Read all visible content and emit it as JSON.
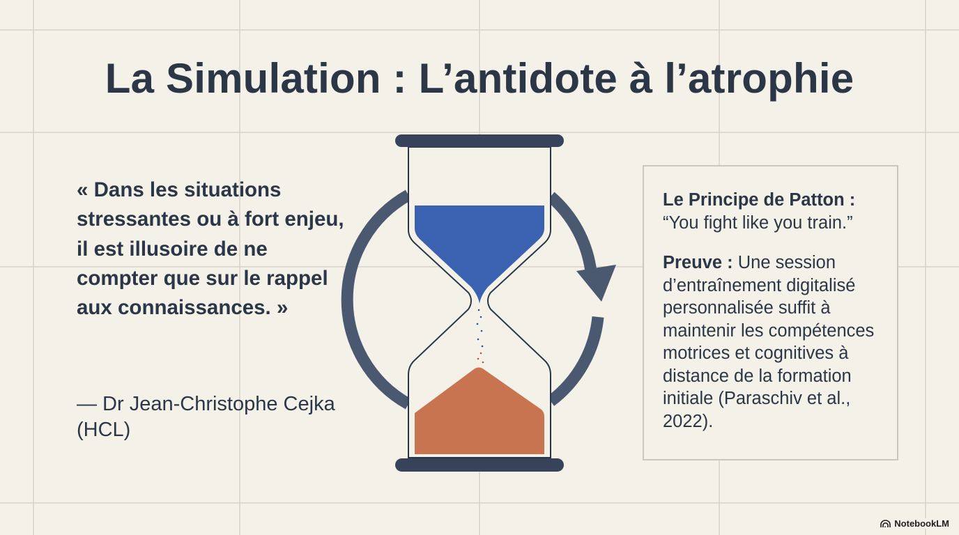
{
  "title": "La Simulation : L’antidote à l’atrophie",
  "quote": {
    "text": "« Dans les situations stressantes ou à fort enjeu, il est illusoire de ne compter que sur le rappel aux connaissances. »",
    "author": "— Dr Jean-Christophe Cejka (HCL)"
  },
  "box": {
    "principle_label": "Le Principe de Patton :",
    "principle_text": "“You fight like you train.”",
    "proof_label": "Preuve :",
    "proof_text": " Une session d’entraînement digitalisé personnalisée suffit à maintenir les compétences motrices et cognitives à distance de la formation initiale (Paraschiv et al., 2022)."
  },
  "illustration": {
    "icon": "hourglass-cycle-icon",
    "colors": {
      "frame": "#36435a",
      "top_sand": "#3a62b0",
      "bottom_sand": "#c87450",
      "cycle_arrow": "#4a5870"
    }
  },
  "branding": {
    "logo_icon": "notebooklm-icon",
    "label": "NotebookLM"
  }
}
